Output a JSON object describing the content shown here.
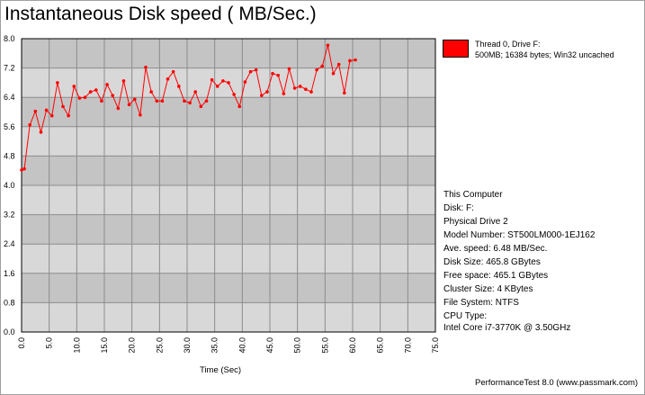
{
  "chart_data": {
    "type": "line",
    "title": "Instantaneous Disk speed ( MB/Sec.)",
    "xlabel": "Time (Sec)",
    "ylabel": "",
    "xlim": [
      0,
      75
    ],
    "ylim": [
      0,
      8
    ],
    "x_ticks": [
      "0.0",
      "5.0",
      "10.0",
      "15.0",
      "20.0",
      "25.0",
      "30.0",
      "35.0",
      "40.0",
      "45.0",
      "50.0",
      "55.0",
      "60.0",
      "65.0",
      "70.0",
      "75.0"
    ],
    "y_ticks": [
      "0.0",
      "0.8",
      "1.6",
      "2.4",
      "3.2",
      "4.0",
      "4.8",
      "5.6",
      "6.4",
      "7.2",
      "8.0"
    ],
    "series": [
      {
        "name": "Thread 0, Drive F:",
        "color": "#ff0000",
        "x": [
          0,
          0.5,
          1.5,
          2.5,
          3.5,
          4.5,
          5.5,
          6.5,
          7.5,
          8.5,
          9.5,
          10.5,
          11.5,
          12.5,
          13.5,
          14.5,
          15.5,
          16.5,
          17.5,
          18.5,
          19.5,
          20.5,
          21.5,
          22.5,
          23.5,
          24.5,
          25.5,
          26.5,
          27.5,
          28.5,
          29.5,
          30.5,
          31.5,
          32.5,
          33.5,
          34.5,
          35.5,
          36.5,
          37.5,
          38.5,
          39.5,
          40.5,
          41.5,
          42.5,
          43.5,
          44.5,
          45.5,
          46.5,
          47.5,
          48.5,
          49.5,
          50.5,
          51.5,
          52.5,
          53.5,
          54.5,
          55.5,
          56.5,
          57.5,
          58.5,
          59.5,
          60.5
        ],
        "y": [
          4.42,
          4.45,
          5.65,
          6.02,
          5.45,
          6.05,
          5.9,
          6.8,
          6.15,
          5.9,
          6.7,
          6.38,
          6.4,
          6.55,
          6.6,
          6.3,
          6.75,
          6.45,
          6.1,
          6.85,
          6.2,
          6.35,
          5.92,
          7.22,
          6.55,
          6.3,
          6.3,
          6.9,
          7.1,
          6.7,
          6.3,
          6.25,
          6.55,
          6.15,
          6.3,
          6.88,
          6.7,
          6.85,
          6.8,
          6.48,
          6.15,
          6.82,
          7.1,
          7.15,
          6.45,
          6.55,
          7.05,
          7.0,
          6.5,
          7.18,
          6.65,
          6.7,
          6.62,
          6.55,
          7.15,
          7.25,
          7.82,
          7.05,
          7.3,
          6.52,
          7.4,
          7.42
        ]
      }
    ],
    "grid": true,
    "legend_position": "right"
  },
  "legend": {
    "line1": "Thread 0, Drive F:",
    "line2": "500MB; 16384 bytes; Win32 uncached"
  },
  "info": {
    "computer": "This Computer",
    "disk": "Disk: F:",
    "physical_drive": "Physical Drive 2",
    "model": "Model Number: ST500LM000-1EJ162",
    "ave_speed": "Ave. speed: 6.48 MB/Sec.",
    "disk_size": "Disk Size: 465.8 GBytes",
    "free_space": "Free space: 465.1 GBytes",
    "cluster_size": "Cluster Size: 4 KBytes",
    "file_system": "File System: NTFS",
    "cpu_label": "CPU Type:",
    "cpu_value": "Intel Core i7-3770K @ 3.50GHz"
  },
  "footer": "PerformanceTest 8.0 (www.passmark.com)",
  "colors": {
    "band_light": "#d8d8d8",
    "band_dark": "#c4c4c4",
    "series": "#ff0000"
  }
}
